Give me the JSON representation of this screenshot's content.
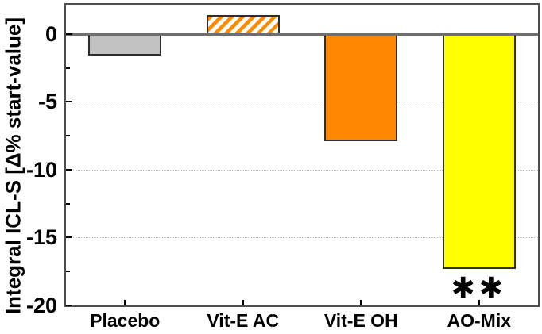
{
  "figure": {
    "background": "#ffffff"
  },
  "chart_data": {
    "type": "bar",
    "title": "",
    "ylabel": "Integral ICL-S [Δ% start-value]",
    "xlabel": "",
    "categories": [
      "Placebo",
      "Vit-E AC",
      "Vit-E OH",
      "AO-Mix"
    ],
    "values": [
      -1.6,
      1.4,
      -7.9,
      -17.3
    ],
    "ylim": [
      -20,
      2.15
    ],
    "yticks_major": [
      0,
      -5,
      -10,
      -15,
      -20
    ],
    "ytick_labels": [
      "0",
      "-5",
      "-10",
      "-15",
      "-20"
    ],
    "yticks_minor": [
      -2.5,
      -7.5,
      -12.5,
      -17.5
    ],
    "gridlines_at": [
      -5,
      -10,
      -15
    ],
    "grid_style": "dotted",
    "grid_color": "#b8b8b8",
    "zero_line_color": "#6e6e6e",
    "legend": "none",
    "bar_styles": [
      {
        "fill": "#c2c2c2",
        "pattern": "solid",
        "border": "#2d2d2d"
      },
      {
        "fill": "#ffffff",
        "pattern": "diagonal-hatch",
        "hatch_color": "#ff8c00",
        "border": "#2d2d2d"
      },
      {
        "fill": "#ff8600",
        "pattern": "solid",
        "border": "#2d2d2d"
      },
      {
        "fill": "#ffff00",
        "pattern": "solid",
        "border": "#2d2d2d"
      }
    ],
    "annotations": [
      {
        "text": "✱✱",
        "category": "AO-Mix",
        "meaning": "statistical-significance"
      }
    ]
  }
}
